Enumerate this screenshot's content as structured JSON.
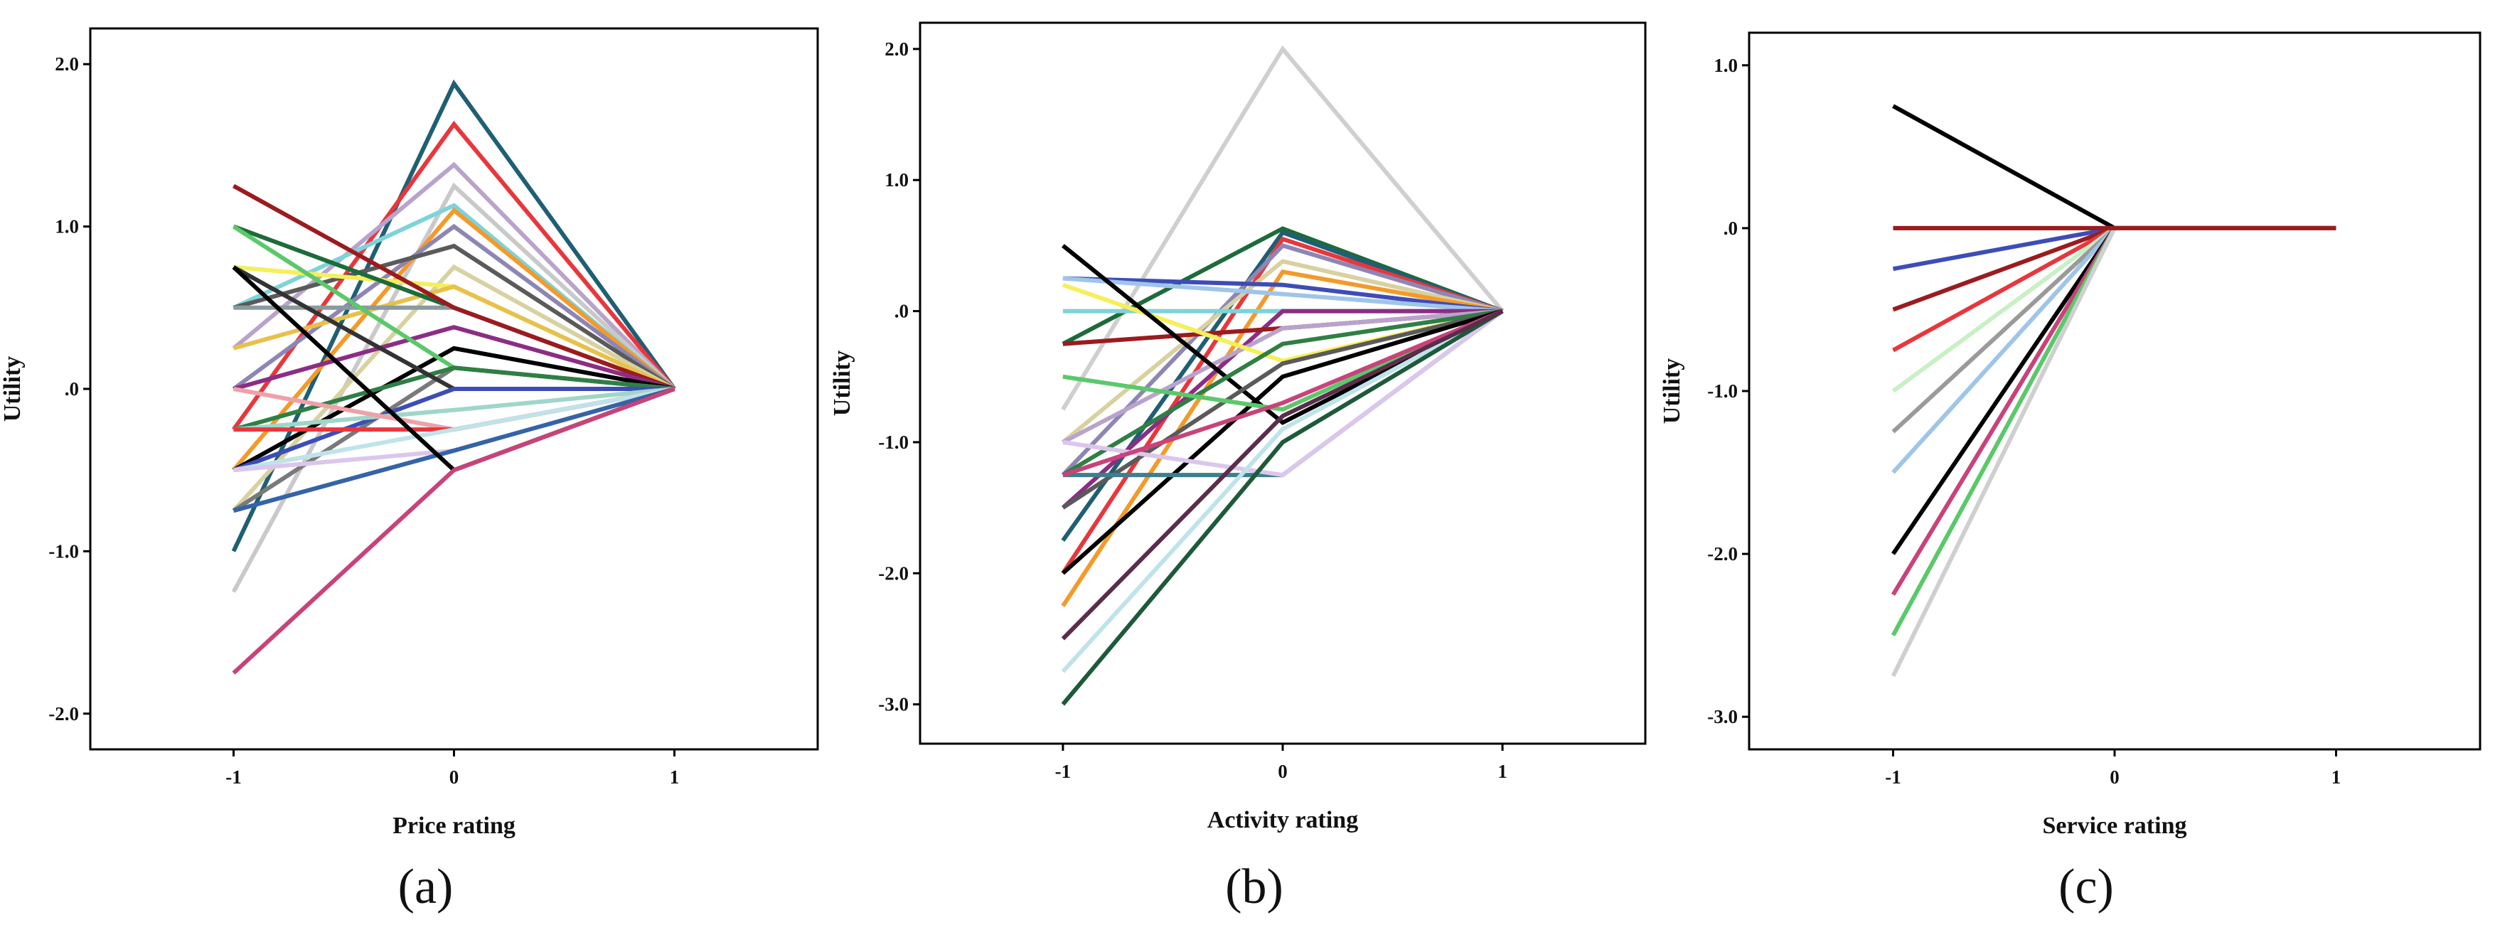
{
  "chart_data": [
    {
      "type": "line",
      "panel_label": "(a)",
      "xlabel": "Price rating",
      "ylabel": "Utility",
      "x": [
        -1,
        0,
        1
      ],
      "x_tick_labels": [
        "-1",
        "0",
        "1"
      ],
      "xlim": [
        -1.65,
        1.65
      ],
      "ylim": [
        -2.22,
        2.22
      ],
      "y_ticks": [
        2,
        1,
        0,
        -1,
        -2
      ],
      "y_tick_labels": [
        "2.0",
        "1.0",
        ".0",
        "-1.0",
        "-2.0"
      ],
      "grid": false,
      "legend": "none",
      "series": [
        {
          "name": "s1",
          "color": "#1f5f73",
          "values": [
            -1.0,
            1.88,
            0
          ]
        },
        {
          "name": "s2",
          "color": "#e8373c",
          "values": [
            -0.25,
            1.63,
            0
          ]
        },
        {
          "name": "s3",
          "color": "#b9a3cc",
          "values": [
            0.25,
            1.38,
            0
          ]
        },
        {
          "name": "s4",
          "color": "#c9c9c9",
          "values": [
            -1.25,
            1.25,
            0
          ]
        },
        {
          "name": "s5",
          "color": "#7dd3d9",
          "values": [
            0.5,
            1.13,
            0
          ]
        },
        {
          "name": "s6",
          "color": "#f39a2a",
          "values": [
            -0.5,
            1.1,
            0
          ]
        },
        {
          "name": "s7",
          "color": "#8d86b5",
          "values": [
            0.0,
            1.0,
            0
          ]
        },
        {
          "name": "s8",
          "color": "#5a5a5a",
          "values": [
            0.5,
            0.88,
            0
          ]
        },
        {
          "name": "s9",
          "color": "#d8d1a0",
          "values": [
            -0.75,
            0.75,
            0
          ]
        },
        {
          "name": "s10",
          "color": "#f5ef5a",
          "values": [
            0.75,
            0.63,
            0
          ]
        },
        {
          "name": "s11",
          "color": "#e7c14a",
          "values": [
            0.25,
            0.63,
            0
          ]
        },
        {
          "name": "s12",
          "color": "#1d6b3a",
          "values": [
            1.0,
            0.5,
            0
          ]
        },
        {
          "name": "s13",
          "color": "#8a9a9e",
          "values": [
            0.5,
            0.5,
            0
          ]
        },
        {
          "name": "s14",
          "color": "#9b1b1e",
          "values": [
            1.25,
            0.5,
            0
          ]
        },
        {
          "name": "s15",
          "color": "#8c2d85",
          "values": [
            0.0,
            0.38,
            0
          ]
        },
        {
          "name": "s16",
          "color": "#000000",
          "values": [
            -0.5,
            0.25,
            0
          ]
        },
        {
          "name": "s17",
          "color": "#5bc86a",
          "values": [
            1.0,
            0.13,
            0
          ]
        },
        {
          "name": "s18",
          "color": "#7a7a7a",
          "values": [
            -0.75,
            0.13,
            0
          ]
        },
        {
          "name": "s19",
          "color": "#2f7f45",
          "values": [
            -0.25,
            0.13,
            0
          ]
        },
        {
          "name": "s20",
          "color": "#333333",
          "values": [
            0.75,
            0.0,
            0
          ]
        },
        {
          "name": "s21",
          "color": "#3d4db7",
          "values": [
            -0.5,
            0.0,
            0
          ]
        },
        {
          "name": "s22",
          "color": "#9fd6c9",
          "values": [
            -0.25,
            -0.13,
            0
          ]
        },
        {
          "name": "s23",
          "color": "#f0a0a8",
          "values": [
            0.0,
            -0.25,
            0
          ]
        },
        {
          "name": "s24",
          "color": "#e8373c",
          "values": [
            -0.25,
            -0.25,
            0
          ]
        },
        {
          "name": "s25",
          "color": "#bfe3ea",
          "values": [
            -0.5,
            -0.25,
            0
          ]
        },
        {
          "name": "s26",
          "color": "#dcc6ec",
          "values": [
            -0.5,
            -0.38,
            0
          ]
        },
        {
          "name": "s27",
          "color": "#3463a8",
          "values": [
            -0.75,
            -0.38,
            0
          ]
        },
        {
          "name": "s28",
          "color": "#000000",
          "values": [
            0.75,
            -0.5,
            0
          ]
        },
        {
          "name": "s29",
          "color": "#c8437a",
          "values": [
            -1.75,
            -0.5,
            0
          ]
        }
      ]
    },
    {
      "type": "line",
      "panel_label": "(b)",
      "xlabel": "Activity rating",
      "ylabel": "Utility",
      "x": [
        -1,
        0,
        1
      ],
      "x_tick_labels": [
        "-1",
        "0",
        "1"
      ],
      "xlim": [
        -1.65,
        1.65
      ],
      "ylim": [
        -3.3,
        2.2
      ],
      "y_ticks": [
        2,
        1,
        0,
        -1,
        -2,
        -3
      ],
      "y_tick_labels": [
        "2.0",
        "1.0",
        ".0",
        "-1.0",
        "-2.0",
        "-3.0"
      ],
      "grid": false,
      "legend": "none",
      "series": [
        {
          "name": "s1",
          "color": "#cfcfcf",
          "values": [
            -0.75,
            2.0,
            0
          ]
        },
        {
          "name": "s2",
          "color": "#1d6b3a",
          "values": [
            -0.25,
            0.63,
            0
          ]
        },
        {
          "name": "s3",
          "color": "#1f5f73",
          "values": [
            -1.75,
            0.6,
            0
          ]
        },
        {
          "name": "s4",
          "color": "#e8373c",
          "values": [
            -2.0,
            0.55,
            0
          ]
        },
        {
          "name": "s5",
          "color": "#8d86b5",
          "values": [
            -1.25,
            0.5,
            0
          ]
        },
        {
          "name": "s6",
          "color": "#d8d1a0",
          "values": [
            -1.0,
            0.38,
            0
          ]
        },
        {
          "name": "s7",
          "color": "#f39a2a",
          "values": [
            -2.25,
            0.3,
            0
          ]
        },
        {
          "name": "s8",
          "color": "#3d4db7",
          "values": [
            0.25,
            0.2,
            0
          ]
        },
        {
          "name": "s9",
          "color": "#9fc5e8",
          "values": [
            0.25,
            0.13,
            0
          ]
        },
        {
          "name": "s10",
          "color": "#7dd3d9",
          "values": [
            0.0,
            0.0,
            0
          ]
        },
        {
          "name": "s11",
          "color": "#8c2d85",
          "values": [
            -1.5,
            0.0,
            0
          ]
        },
        {
          "name": "s12",
          "color": "#9b1b1e",
          "values": [
            -0.25,
            -0.13,
            0
          ]
        },
        {
          "name": "s13",
          "color": "#b9a3cc",
          "values": [
            -1.0,
            -0.13,
            0
          ]
        },
        {
          "name": "s14",
          "color": "#f5ef5a",
          "values": [
            0.2,
            -0.38,
            0
          ]
        },
        {
          "name": "s15",
          "color": "#000000",
          "values": [
            0.5,
            -0.85,
            0
          ]
        },
        {
          "name": "s16",
          "color": "#2f7f45",
          "values": [
            -1.25,
            -0.25,
            0
          ]
        },
        {
          "name": "s17",
          "color": "#5a5a5a",
          "values": [
            -1.5,
            -0.4,
            0
          ]
        },
        {
          "name": "s18",
          "color": "#000000",
          "values": [
            -2.0,
            -0.5,
            0
          ]
        },
        {
          "name": "s19",
          "color": "#5bc86a",
          "values": [
            -0.5,
            -0.75,
            0
          ]
        },
        {
          "name": "s20",
          "color": "#3d7f8c",
          "values": [
            -1.25,
            -1.25,
            0
          ]
        },
        {
          "name": "s21",
          "color": "#dcc6ec",
          "values": [
            -1.0,
            -1.25,
            0
          ]
        },
        {
          "name": "s22",
          "color": "#bfe3ea",
          "values": [
            -2.75,
            -0.9,
            0
          ]
        },
        {
          "name": "s23",
          "color": "#c8437a",
          "values": [
            -1.25,
            -0.7,
            0
          ]
        },
        {
          "name": "s24",
          "color": "#1d5a3a",
          "values": [
            -3.0,
            -1.0,
            0
          ]
        },
        {
          "name": "s25",
          "color": "#5a2d4a",
          "values": [
            -2.5,
            -0.8,
            0
          ]
        }
      ]
    },
    {
      "type": "line",
      "panel_label": "(c)",
      "xlabel": "Service rating",
      "ylabel": "Utility",
      "x": [
        -1,
        0,
        1
      ],
      "x_tick_labels": [
        "-1",
        "0",
        "1"
      ],
      "xlim": [
        -1.65,
        1.65
      ],
      "ylim": [
        -3.2,
        1.2
      ],
      "y_ticks": [
        1,
        0,
        -1,
        -2,
        -3
      ],
      "y_tick_labels": [
        "1.0",
        ".0",
        "-1.0",
        "-2.0",
        "-3.0"
      ],
      "grid": false,
      "legend": "none",
      "series": [
        {
          "name": "s1",
          "color": "#000000",
          "values": [
            0.75,
            0,
            0
          ]
        },
        {
          "name": "s2",
          "color": "#5bc86a",
          "values": [
            0.0,
            0,
            0
          ]
        },
        {
          "name": "s3",
          "color": "#3d4db7",
          "values": [
            -0.25,
            0,
            0
          ]
        },
        {
          "name": "s4",
          "color": "#9b1b1e",
          "values": [
            -0.5,
            0,
            0
          ]
        },
        {
          "name": "s5",
          "color": "#e8373c",
          "values": [
            -0.75,
            0,
            0
          ]
        },
        {
          "name": "s6",
          "color": "#c8f0c4",
          "values": [
            -1.0,
            0,
            0
          ]
        },
        {
          "name": "s7",
          "color": "#9a9a9a",
          "values": [
            -1.25,
            0,
            0
          ]
        },
        {
          "name": "s8",
          "color": "#9fc5e8",
          "values": [
            -1.5,
            0,
            0
          ]
        },
        {
          "name": "s9",
          "color": "#000000",
          "values": [
            -2.0,
            0,
            0
          ]
        },
        {
          "name": "s10",
          "color": "#c8437a",
          "values": [
            -2.25,
            0,
            0
          ]
        },
        {
          "name": "s11",
          "color": "#5bc86a",
          "values": [
            -2.5,
            0,
            0
          ]
        },
        {
          "name": "s12",
          "color": "#cfcfcf",
          "values": [
            -2.75,
            0,
            0
          ]
        },
        {
          "name": "s13",
          "color": "#9b1b1e",
          "values": [
            0.0,
            0.0,
            0
          ]
        }
      ]
    }
  ]
}
